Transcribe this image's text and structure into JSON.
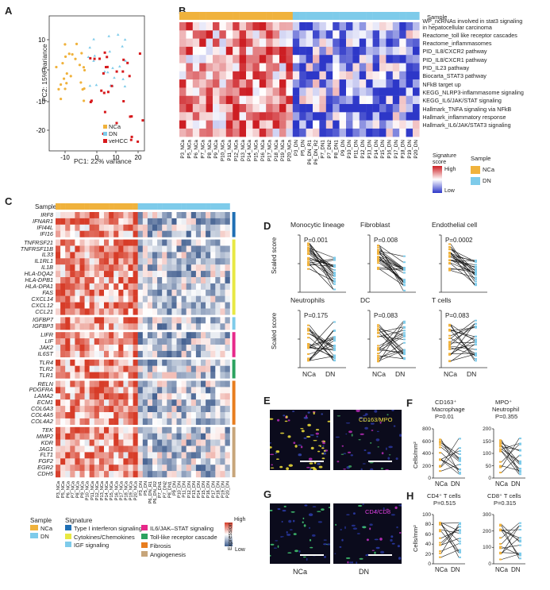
{
  "panels": {
    "A": "A",
    "B": "B",
    "C": "C",
    "D": "D",
    "E": "E",
    "F": "F",
    "G": "G",
    "H": "H"
  },
  "pca": {
    "xlabel": "PC1: 22% variance",
    "ylabel": "PC2: 15% variance",
    "xticks": [
      "-10",
      "0",
      "10",
      "20"
    ],
    "yticks": [
      "10",
      "0",
      "-10",
      "-20"
    ],
    "legend": [
      {
        "name": "NCa",
        "color": "#f0b23c"
      },
      {
        "name": "DN",
        "color": "#7ecbea"
      },
      {
        "name": "veHCC",
        "color": "#d7191c"
      }
    ]
  },
  "heatB": {
    "sample_label": "Sample",
    "pathways": [
      "WP_ncRNAs involved in stat3 signaling",
      "in hepatocellular carcinoma",
      "Reactome_toll like receptor cascades",
      "Reactome_inflammasomes",
      "PID_IL8/CXCR2 pathway",
      "PID_IL8/CXCR1 pathway",
      "PID_IL23 pathway",
      "Biocarta_STAT3 pathway",
      "NFkB target up",
      "KEGG_NLRP3-inflammasome signaling",
      "KEGG_IL6/JAK/STAT signaling",
      "Hallmark_TNFA signaling via NFkB",
      "Hallmark_inflammatory response",
      "Hallmark_IL6/JAK/STAT3 signaling"
    ],
    "columns": [
      "P3_NCa",
      "P5_NCa",
      "P6_NCa",
      "P7_NCa",
      "P8_NCa",
      "P9_NCa",
      "P10_NCa",
      "P11_NCa",
      "P12_NCa",
      "P13_NCa",
      "P14_NCa",
      "P15_NCa",
      "P16_NCa",
      "P17_NCa",
      "P18_NCa",
      "P19_NCa",
      "P20_NCa",
      "P3_DN",
      "P5_DN",
      "P6_DN_R1",
      "P6_DN_R2",
      "P7_DN1",
      "P7_DN2",
      "P8_DN1",
      "P9_DN",
      "P10_DN",
      "P11_DN",
      "P12_DN",
      "P13_DN",
      "P14_DN",
      "P15_DN",
      "P16_DN",
      "P17_DN",
      "P18_DN",
      "P19_DN",
      "P20_DN"
    ],
    "legend_title": "Signature score",
    "high": "High",
    "low": "Low",
    "sample_legend_title": "Sample",
    "sample_legend": [
      {
        "name": "NCa",
        "color": "#f0b23c"
      },
      {
        "name": "DN",
        "color": "#7ecbea"
      }
    ]
  },
  "heatC": {
    "sample_label": "Sample",
    "genes": [
      "IRF8",
      "IFNAR1",
      "IFI44L",
      "IFI16",
      "TNFRSF21",
      "TNFRSF11B",
      "IL33",
      "IL1RL1",
      "IL1B",
      "HLA-DQA2",
      "HLA-DPB1",
      "HLA-DPA1",
      "FAS",
      "CXCL14",
      "CXCL12",
      "CCL21",
      "IGFBP7",
      "IGFBP3",
      "LIFR",
      "LIF",
      "JAK2",
      "IL6ST",
      "TLR4",
      "TLR2",
      "TLR1",
      "RELN",
      "PDGFRA",
      "LAMA2",
      "ECM1",
      "COL6A3",
      "COL4A5",
      "COL4A2",
      "TEK",
      "MMP2",
      "KDR",
      "JAG1",
      "FLT1",
      "FGF2",
      "EGR2",
      "CDH5"
    ],
    "groups": [
      4,
      12,
      2,
      4,
      3,
      7,
      8
    ],
    "group_colors": [
      "#1f6fb4",
      "#e8e843",
      "#7ecbea",
      "#e7298a",
      "#2ca25f",
      "#e87d1e",
      "#c7a57a"
    ],
    "legend_sample_title": "Sample",
    "legend_samples": [
      {
        "name": "NCa",
        "color": "#f0b23c"
      },
      {
        "name": "DN",
        "color": "#7ecbea"
      }
    ],
    "legend_signature_title": "Signature",
    "legend_signatures": [
      {
        "name": "Type I interferon signaling",
        "color": "#1f6fb4"
      },
      {
        "name": "Cytokines/Chemokines",
        "color": "#e8e843"
      },
      {
        "name": "IGF signaling",
        "color": "#7ecbea"
      },
      {
        "name": "IL6/JAK–STAT signaling",
        "color": "#e7298a"
      },
      {
        "name": "Toll-like receptor cascade",
        "color": "#2ca25f"
      },
      {
        "name": "Fibrosis",
        "color": "#e87d1e"
      },
      {
        "name": "Angiogenesis",
        "color": "#c7a57a"
      }
    ],
    "expr_title": "Expression",
    "high": "High",
    "low": "Low"
  },
  "panelD": {
    "ylabel": "Scaled score",
    "xcats": [
      "NCa",
      "DN"
    ],
    "plots": [
      {
        "title": "Monocytic lineage",
        "p": "P=0.001"
      },
      {
        "title": "Fibroblast",
        "p": "P=0.008"
      },
      {
        "title": "Endothelial cell",
        "p": "P=0.0002"
      },
      {
        "title": "Neutrophils",
        "p": "P=0.175"
      },
      {
        "title": "DC",
        "p": "P=0.083"
      },
      {
        "title": "T cells",
        "p": "P=0.083"
      }
    ]
  },
  "panelE": {
    "stain": "CD163/MPO"
  },
  "panelG": {
    "stain": "CD4/CD8",
    "labels": [
      "NCa",
      "DN"
    ]
  },
  "panelF": {
    "ylabel": "Cells/mm²",
    "plots": [
      {
        "title1": "CD163⁺",
        "title2": "Macrophage",
        "p": "P=0.01",
        "yticks": [
          "800",
          "600",
          "400",
          "200",
          "0"
        ]
      },
      {
        "title1": "MPO⁺",
        "title2": "Neutrophil",
        "p": "P=0.355",
        "yticks": [
          "200",
          "150",
          "100",
          "50",
          "0"
        ]
      }
    ],
    "xcats": [
      "NCa",
      "DN"
    ]
  },
  "panelH": {
    "ylabel": "Cells/mm²",
    "plots": [
      {
        "title": "CD4⁺ T cells",
        "p": "P=0.515",
        "yticks": [
          "100",
          "80",
          "60",
          "40",
          "20",
          "0"
        ]
      },
      {
        "title": "CD8⁺ T cells",
        "p": "P=0.315",
        "yticks": [
          "300",
          "200",
          "100",
          "0"
        ]
      }
    ],
    "xcats": [
      "NCa",
      "DN"
    ]
  },
  "colors": {
    "nca": "#f0b23c",
    "dn": "#7ecbea",
    "vehcc": "#d7191c"
  }
}
